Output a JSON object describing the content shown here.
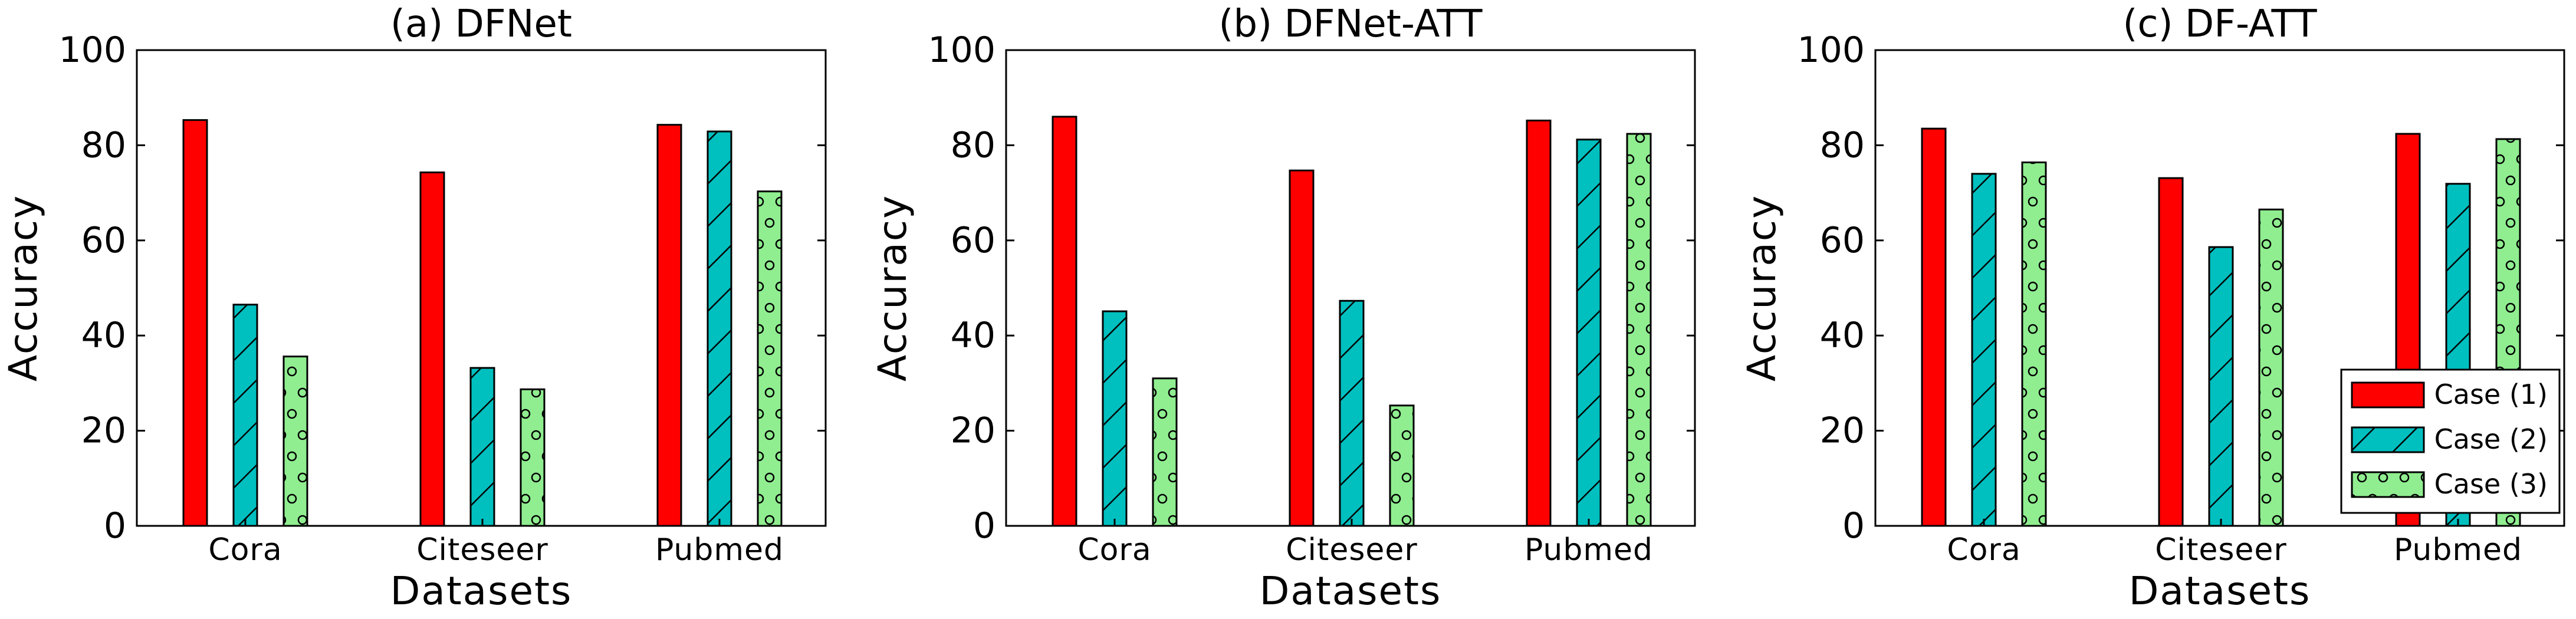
{
  "chart_data": [
    {
      "type": "bar",
      "title": "(a) DFNet",
      "xlabel": "Datasets",
      "ylabel": "Accuracy",
      "ylim": [
        0,
        100
      ],
      "yticks": [
        "0",
        "20",
        "40",
        "60",
        "80",
        "100"
      ],
      "categories": [
        "Cora",
        "Citeseer",
        "Pubmed"
      ],
      "series": [
        {
          "values": [
            85.3,
            74.3,
            84.3
          ]
        },
        {
          "values": [
            46.5,
            33.2,
            82.9
          ]
        },
        {
          "values": [
            35.6,
            28.7,
            70.3
          ]
        }
      ]
    },
    {
      "type": "bar",
      "title": "(b) DFNet-ATT",
      "xlabel": "Datasets",
      "ylabel": "Accuracy",
      "ylim": [
        0,
        100
      ],
      "yticks": [
        "0",
        "20",
        "40",
        "60",
        "80",
        "100"
      ],
      "categories": [
        "Cora",
        "Citeseer",
        "Pubmed"
      ],
      "series": [
        {
          "values": [
            86.0,
            74.7,
            85.2
          ]
        },
        {
          "values": [
            45.1,
            47.3,
            81.2
          ]
        },
        {
          "values": [
            31.0,
            25.3,
            82.4
          ]
        }
      ]
    },
    {
      "type": "bar",
      "title": "(c) DF-ATT",
      "xlabel": "Datasets",
      "ylabel": "Accuracy",
      "ylim": [
        0,
        100
      ],
      "yticks": [
        "0",
        "20",
        "40",
        "60",
        "80",
        "100"
      ],
      "categories": [
        "Cora",
        "Citeseer",
        "Pubmed"
      ],
      "series": [
        {
          "values": [
            83.5,
            73.1,
            82.4
          ]
        },
        {
          "values": [
            74.0,
            58.6,
            71.9
          ]
        },
        {
          "values": [
            76.4,
            66.5,
            81.3
          ]
        }
      ]
    }
  ],
  "legend": {
    "placement": "bottom-right",
    "entries": [
      "Case (1)",
      "Case (2)",
      "Case (3)"
    ]
  },
  "colors": {
    "case1": "#ff0000",
    "case2": "#00bfbf",
    "case3": "#90ee90",
    "edge": "#000000"
  }
}
